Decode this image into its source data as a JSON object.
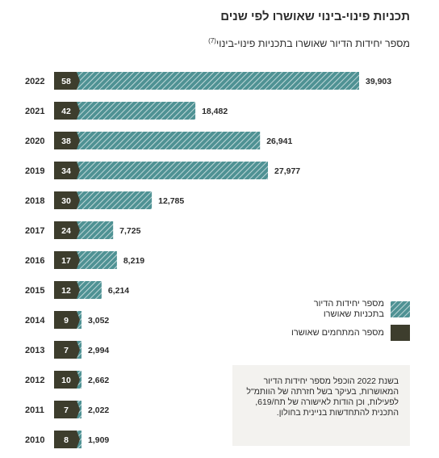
{
  "title": "תכניות פינוי-בינוי שאושרו לפי שנים",
  "subtitle": "מספר יחידות הדיור שאושרו בתכניות פינוי-בינוי",
  "subtitle_note": "(7)",
  "colors": {
    "units": "#4f9294",
    "plans": "#3d3d2d",
    "note_bg": "#f3f2ef"
  },
  "legend": {
    "units": "מספר יחידות הדיור בתכניות שאושרו",
    "plans": "מספר המתחמים שאושרו"
  },
  "note": "בשנת 2022 הוכפל מספר יחידות הדיור המאושרות, בעיקר בשל חזרתה של הוותמ\"ל לפעילות, וכן הודות לאישורה של תח/619, התכנית להתחדשות בניינית בחולון.",
  "chart_data": {
    "type": "bar",
    "orientation": "horizontal",
    "categories": [
      "2022",
      "2021",
      "2020",
      "2019",
      "2018",
      "2017",
      "2016",
      "2015",
      "2014",
      "2013",
      "2012",
      "2011",
      "2010"
    ],
    "series": [
      {
        "name": "מספר יחידות הדיור בתכניות שאושרו",
        "values": [
          39903,
          18482,
          26941,
          27977,
          12785,
          7725,
          8219,
          6214,
          3052,
          2994,
          2662,
          2022,
          1909
        ],
        "labels": [
          "39,903",
          "18,482",
          "26,941",
          "27,977",
          "12,785",
          "7,725",
          "8,219",
          "6,214",
          "3,052",
          "2,994",
          "2,662",
          "2,022",
          "1,909"
        ]
      },
      {
        "name": "מספר המתחמים שאושרו",
        "values": [
          58,
          42,
          38,
          34,
          30,
          24,
          17,
          12,
          9,
          7,
          10,
          7,
          8
        ]
      }
    ],
    "xlim": [
      0,
      39903
    ]
  }
}
